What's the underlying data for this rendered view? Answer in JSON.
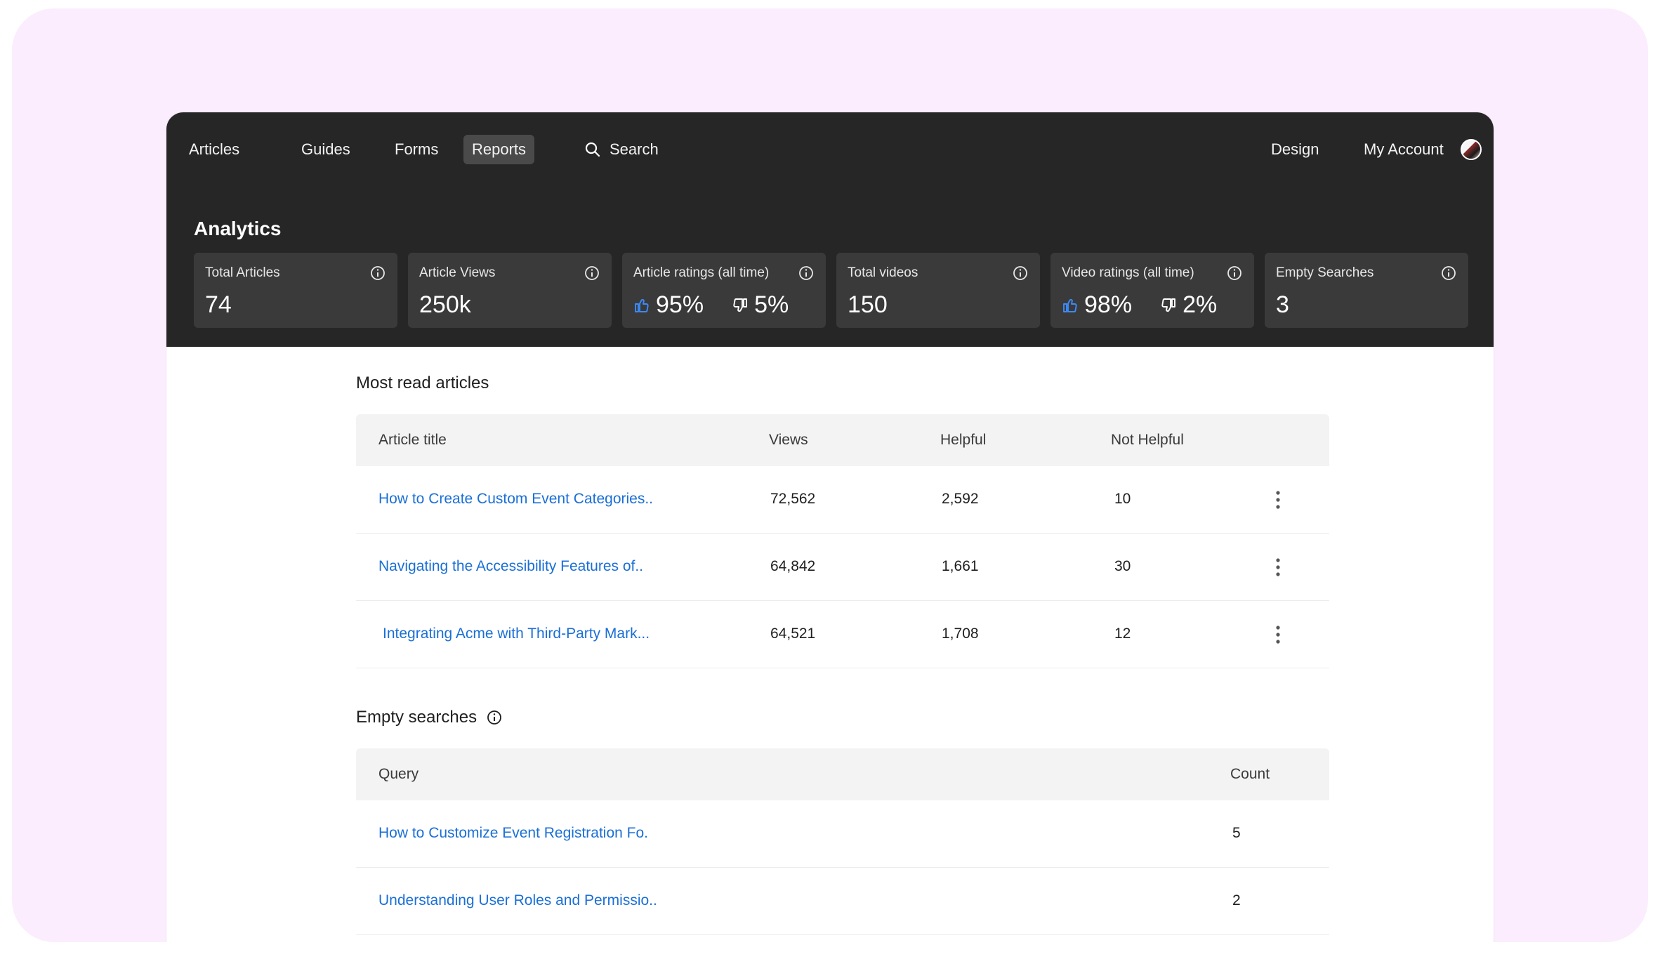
{
  "nav": {
    "items": [
      {
        "label": "Articles"
      },
      {
        "label": "Guides"
      },
      {
        "label": "Forms"
      },
      {
        "label": "Reports"
      }
    ],
    "search_label": "Search",
    "design_label": "Design",
    "account_label": "My Account"
  },
  "analytics": {
    "title": "Analytics",
    "stats": [
      {
        "label": "Total Articles",
        "value": "74"
      },
      {
        "label": "Article Views",
        "value": "250k"
      },
      {
        "label": "Article ratings (all time)",
        "up": "95%",
        "down": "5%"
      },
      {
        "label": "Total videos",
        "value": "150"
      },
      {
        "label": "Video ratings (all time)",
        "up": "98%",
        "down": "2%"
      },
      {
        "label": "Empty Searches",
        "value": "3"
      }
    ]
  },
  "most_read": {
    "title": "Most read articles",
    "headers": [
      "Article title",
      "Views",
      "Helpful",
      "Not Helpful"
    ],
    "rows": [
      {
        "title": "How to Create Custom Event Categories..",
        "views": "72,562",
        "helpful": "2,592",
        "not_helpful": "10"
      },
      {
        "title": "Navigating the Accessibility Features of..",
        "views": "64,842",
        "helpful": "1,661",
        "not_helpful": "30"
      },
      {
        "title": "Integrating Acme with Third-Party Mark...",
        "views": "64,521",
        "helpful": "1,708",
        "not_helpful": "12"
      }
    ]
  },
  "empty_searches": {
    "title": "Empty searches",
    "headers": [
      "Query",
      "Count"
    ],
    "rows": [
      {
        "query": "How to Customize Event Registration Fo.",
        "count": "5"
      },
      {
        "query": "Understanding User Roles and Permissio..",
        "count": "2"
      }
    ]
  },
  "colors": {
    "accent": "#1a6fd6",
    "dark_header": "#262626",
    "card": "#3a3a3a",
    "background": "#fbedfd"
  }
}
